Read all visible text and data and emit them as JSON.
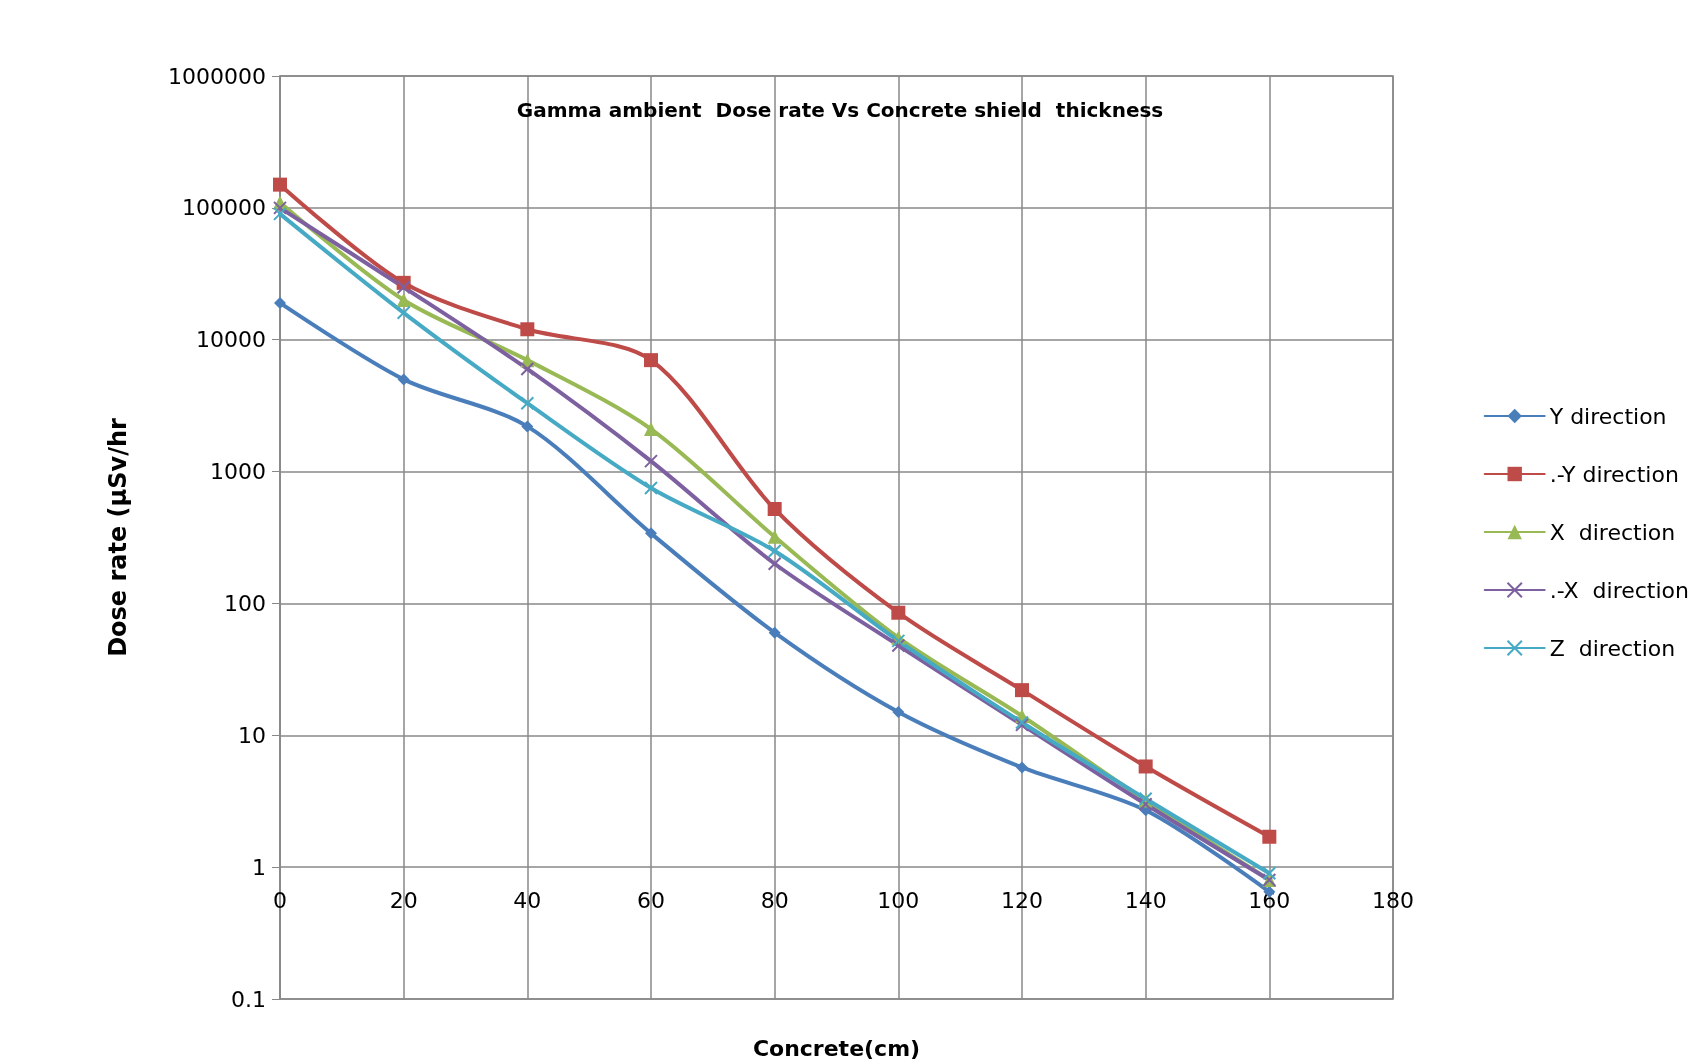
{
  "chart_data": {
    "type": "line",
    "title": "Gamma ambient  Dose rate Vs Concrete shield  thickness",
    "xlabel": "Concrete(cm)",
    "ylabel": "Dose rate (µSv/hr",
    "x": [
      0,
      20,
      40,
      60,
      80,
      100,
      120,
      140,
      160
    ],
    "xlim": [
      0,
      180
    ],
    "xticks": [
      0,
      20,
      40,
      60,
      80,
      100,
      120,
      140,
      160,
      180
    ],
    "ylim": [
      0.1,
      1000000
    ],
    "yticks": [
      0.1,
      1,
      10,
      100,
      1000,
      10000,
      100000,
      1000000
    ],
    "log": true,
    "grid": true,
    "legend": "right",
    "series": [
      {
        "name": "Y direction",
        "color": "#4a7ebb",
        "marker": "diamond",
        "values": [
          19000,
          5000,
          2200,
          340,
          60,
          15,
          5.7,
          2.7,
          0.65
        ]
      },
      {
        "name": ".-Y direction",
        "color": "#be4b48",
        "marker": "square",
        "values": [
          150000,
          27000,
          12000,
          7000,
          520,
          85,
          22,
          5.8,
          1.7
        ]
      },
      {
        "name": "X  direction",
        "color": "#98b954",
        "marker": "triangle",
        "values": [
          110000,
          20000,
          7000,
          2100,
          320,
          55,
          14,
          3.2,
          0.8
        ]
      },
      {
        "name": ".-X  direction",
        "color": "#7d60a0",
        "marker": "cross",
        "values": [
          100000,
          25000,
          6000,
          1200,
          200,
          48,
          12,
          3,
          0.8
        ]
      },
      {
        "name": "Z  direction",
        "color": "#46aac5",
        "marker": "cross",
        "values": [
          90000,
          16000,
          3300,
          750,
          250,
          52,
          12.5,
          3.3,
          0.9
        ]
      }
    ]
  }
}
